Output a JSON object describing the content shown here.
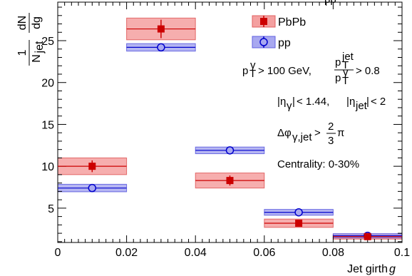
{
  "chart_data": {
    "type": "bar",
    "xlabel": "Jet girth",
    "xlabel_var": "g",
    "ylabel": {
      "numerator": "1",
      "den_N": "N",
      "den_sub": "jet",
      "d_num": "dN",
      "d_den": "dg"
    },
    "xlim": [
      0,
      0.1
    ],
    "ylim": [
      0.9,
      29.6
    ],
    "x_ticks": [
      0,
      0.02,
      0.04,
      0.06,
      0.08,
      0.1
    ],
    "x_tick_labels": [
      "0",
      "0.02",
      "0.04",
      "0.06",
      "0.08",
      "0.1"
    ],
    "y_ticks": [
      5,
      10,
      15,
      20,
      25
    ],
    "y_tick_labels": [
      "5",
      "10",
      "15",
      "20",
      "25"
    ],
    "bin_edges": [
      0,
      0.02,
      0.04,
      0.06,
      0.08,
      0.1
    ],
    "series": [
      {
        "name": "PbPb",
        "color": "#cc0000",
        "fill": "#f4a0a0",
        "marker": "square",
        "x": [
          0.01,
          0.03,
          0.05,
          0.07,
          0.09
        ],
        "values": [
          10.0,
          26.4,
          8.3,
          3.2,
          1.6
        ],
        "stat_err": [
          0.7,
          1.1,
          0.6,
          0.3,
          0.2
        ],
        "sys_err": [
          1.0,
          1.3,
          0.9,
          0.5,
          0.3
        ]
      },
      {
        "name": "pp",
        "color": "#0000cc",
        "fill": "#a8a8f0",
        "marker": "circle",
        "x": [
          0.01,
          0.03,
          0.05,
          0.07,
          0.09
        ],
        "values": [
          7.4,
          24.2,
          11.9,
          4.5,
          1.7
        ],
        "stat_err": [
          0.1,
          0.15,
          0.1,
          0.1,
          0.1
        ],
        "sys_err": [
          0.45,
          0.45,
          0.4,
          0.35,
          0.25
        ]
      }
    ],
    "legend_position": "top-right",
    "annotations": {
      "pt_cut": "> 100 GeV,",
      "pt_ratio": "> 0.8",
      "eta_cuts": "< 1.44,",
      "eta_jet": "< 2",
      "dphi_cut": ">",
      "frac_num": "2",
      "frac_den": "3",
      "pi": "π",
      "centrality": "Centrality: 0-30%"
    },
    "top_fragment": "pp"
  }
}
